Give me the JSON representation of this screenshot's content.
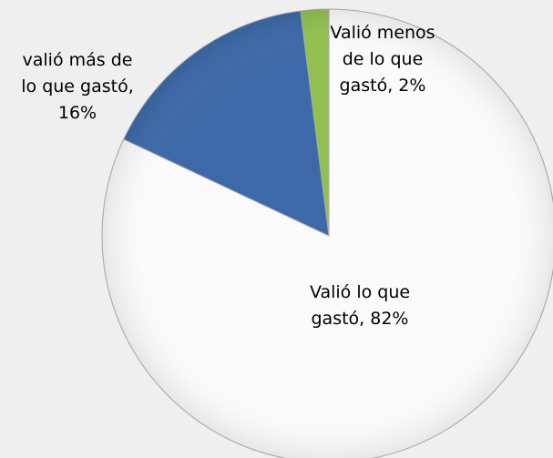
{
  "chart_data": {
    "type": "pie",
    "labels": [
      "Valió menos de lo que gastó, 2%",
      "valió más de lo que gastó, 16%",
      "Valió lo que gastó, 82%"
    ],
    "values": [
      2,
      16,
      82
    ],
    "colors": [
      "#92c050",
      "#3d69a8",
      "#fafafa"
    ],
    "direction": "counterclockwise",
    "start": "top"
  }
}
